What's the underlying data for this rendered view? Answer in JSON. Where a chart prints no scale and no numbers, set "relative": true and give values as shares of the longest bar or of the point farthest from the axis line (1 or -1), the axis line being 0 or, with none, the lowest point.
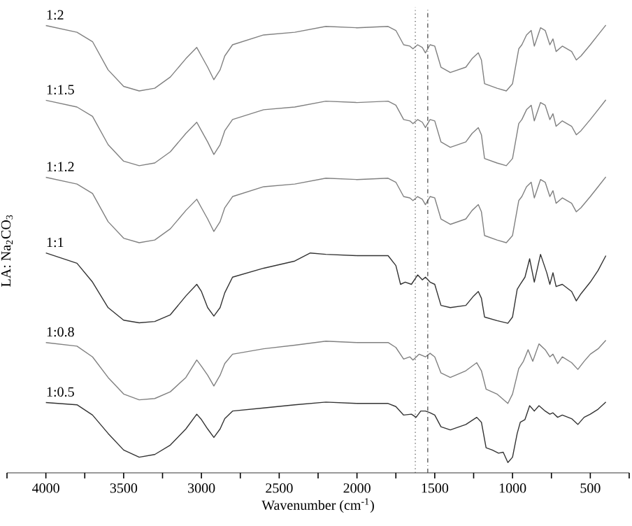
{
  "chart_data": {
    "type": "line",
    "relative": true,
    "xlabel": "Wavenumber (cm$^{-1}$)",
    "ylabel": "LA: Na$_{2}$CO$_{3}$",
    "xlim": [
      4250,
      250
    ],
    "xticks": [
      {
        "value": 4250,
        "label": null
      },
      4000,
      {
        "value": 3750,
        "label": null
      },
      3500,
      {
        "value": 3250,
        "label": null
      },
      3000,
      {
        "value": 2750,
        "label": null
      },
      2500,
      {
        "value": 2250,
        "label": null
      },
      2000,
      {
        "value": 1750,
        "label": null
      },
      1500,
      {
        "value": 1250,
        "label": null
      },
      1000,
      {
        "value": 750,
        "label": null
      },
      500,
      {
        "value": 250,
        "label": null
      }
    ],
    "legend": false,
    "grid": false,
    "marker": "none",
    "line_style": "solid",
    "tick_labels": "x",
    "ref_lines": [
      {
        "axis": "x",
        "value": 1625,
        "line_style": "dotted",
        "color": "#404040"
      },
      {
        "axis": "x",
        "value": 1545,
        "line_style": "dashed",
        "color": "#404040"
      }
    ],
    "series": [
      {
        "name": "1:2",
        "color": "#808080",
        "x": [
          4000,
          3800,
          3700,
          3600,
          3500,
          3400,
          3300,
          3200,
          3100,
          3030,
          3000,
          2960,
          2920,
          2880,
          2850,
          2800,
          2600,
          2400,
          2200,
          2000,
          1800,
          1750,
          1700,
          1660,
          1640,
          1610,
          1580,
          1560,
          1530,
          1500,
          1460,
          1400,
          1300,
          1260,
          1220,
          1200,
          1180,
          1100,
          1040,
          1000,
          960,
          940,
          910,
          880,
          860,
          820,
          790,
          760,
          740,
          720,
          680,
          620,
          590,
          560,
          500,
          450,
          400
        ],
        "values": [
          0.999,
          0.984,
          0.963,
          0.9,
          0.863,
          0.853,
          0.859,
          0.884,
          0.925,
          0.95,
          0.931,
          0.906,
          0.878,
          0.9,
          0.931,
          0.956,
          0.978,
          0.984,
          0.997,
          0.994,
          0.997,
          0.988,
          0.956,
          0.953,
          0.947,
          0.956,
          0.95,
          0.938,
          0.956,
          0.953,
          0.906,
          0.894,
          0.906,
          0.925,
          0.938,
          0.922,
          0.869,
          0.859,
          0.853,
          0.869,
          0.947,
          0.956,
          0.978,
          0.988,
          0.953,
          0.994,
          0.988,
          0.956,
          0.969,
          0.941,
          0.953,
          0.941,
          0.922,
          0.931,
          0.956,
          0.978,
          1
        ]
      },
      {
        "name": "1:1.5",
        "color": "#808080",
        "x": [
          4000,
          3800,
          3700,
          3600,
          3500,
          3400,
          3300,
          3200,
          3100,
          3030,
          3000,
          2960,
          2920,
          2880,
          2850,
          2800,
          2600,
          2400,
          2200,
          2000,
          1800,
          1750,
          1700,
          1660,
          1640,
          1610,
          1580,
          1560,
          1530,
          1500,
          1460,
          1400,
          1300,
          1260,
          1220,
          1200,
          1180,
          1100,
          1040,
          1000,
          960,
          940,
          910,
          880,
          860,
          820,
          790,
          760,
          740,
          720,
          680,
          620,
          590,
          560,
          500,
          450,
          400
        ],
        "values": [
          0.832,
          0.817,
          0.796,
          0.733,
          0.696,
          0.686,
          0.692,
          0.717,
          0.758,
          0.783,
          0.764,
          0.739,
          0.711,
          0.733,
          0.764,
          0.789,
          0.811,
          0.817,
          0.83,
          0.827,
          0.83,
          0.821,
          0.789,
          0.786,
          0.78,
          0.789,
          0.783,
          0.771,
          0.789,
          0.786,
          0.739,
          0.727,
          0.739,
          0.758,
          0.771,
          0.755,
          0.702,
          0.692,
          0.686,
          0.702,
          0.78,
          0.789,
          0.811,
          0.821,
          0.786,
          0.827,
          0.821,
          0.789,
          0.802,
          0.774,
          0.786,
          0.774,
          0.755,
          0.764,
          0.789,
          0.811,
          0.833
        ]
      },
      {
        "name": "1:1.2",
        "color": "#808080",
        "x": [
          4000,
          3800,
          3700,
          3600,
          3500,
          3400,
          3300,
          3200,
          3100,
          3030,
          3000,
          2960,
          2920,
          2880,
          2850,
          2800,
          2600,
          2400,
          2200,
          2000,
          1800,
          1750,
          1700,
          1660,
          1640,
          1610,
          1580,
          1560,
          1530,
          1500,
          1460,
          1400,
          1300,
          1260,
          1220,
          1200,
          1180,
          1100,
          1040,
          1000,
          960,
          940,
          910,
          880,
          860,
          820,
          790,
          760,
          740,
          720,
          680,
          620,
          590,
          560,
          500,
          450,
          400
        ],
        "values": [
          0.66,
          0.645,
          0.624,
          0.561,
          0.524,
          0.514,
          0.52,
          0.545,
          0.586,
          0.611,
          0.592,
          0.567,
          0.539,
          0.561,
          0.592,
          0.617,
          0.639,
          0.645,
          0.658,
          0.655,
          0.658,
          0.649,
          0.617,
          0.614,
          0.608,
          0.617,
          0.611,
          0.599,
          0.617,
          0.614,
          0.567,
          0.555,
          0.567,
          0.586,
          0.599,
          0.583,
          0.53,
          0.52,
          0.514,
          0.53,
          0.608,
          0.617,
          0.639,
          0.649,
          0.614,
          0.655,
          0.649,
          0.617,
          0.63,
          0.602,
          0.614,
          0.602,
          0.583,
          0.592,
          0.617,
          0.639,
          0.661
        ]
      },
      {
        "name": "1:1",
        "color": "#333333",
        "x": [
          4000,
          3800,
          3700,
          3600,
          3500,
          3400,
          3300,
          3200,
          3100,
          3030,
          3000,
          2960,
          2920,
          2880,
          2850,
          2800,
          2600,
          2400,
          2300,
          2200,
          2000,
          1800,
          1750,
          1720,
          1690,
          1650,
          1610,
          1580,
          1560,
          1530,
          1500,
          1460,
          1400,
          1300,
          1250,
          1220,
          1200,
          1180,
          1100,
          1030,
          1000,
          970,
          950,
          920,
          890,
          860,
          820,
          780,
          760,
          740,
          720,
          680,
          620,
          590,
          560,
          500,
          450,
          400
        ],
        "values": [
          0.491,
          0.468,
          0.426,
          0.369,
          0.341,
          0.335,
          0.338,
          0.353,
          0.395,
          0.421,
          0.405,
          0.369,
          0.35,
          0.369,
          0.402,
          0.437,
          0.457,
          0.473,
          0.491,
          0.488,
          0.485,
          0.485,
          0.463,
          0.421,
          0.426,
          0.421,
          0.442,
          0.431,
          0.437,
          0.426,
          0.421,
          0.374,
          0.369,
          0.374,
          0.395,
          0.405,
          0.39,
          0.348,
          0.34,
          0.334,
          0.348,
          0.41,
          0.421,
          0.437,
          0.478,
          0.426,
          0.488,
          0.447,
          0.421,
          0.447,
          0.416,
          0.421,
          0.405,
          0.384,
          0.4,
          0.426,
          0.452,
          0.485
        ]
      },
      {
        "name": "1:0.8",
        "color": "#808080",
        "x": [
          4000,
          3800,
          3700,
          3600,
          3500,
          3400,
          3300,
          3200,
          3100,
          3030,
          3000,
          2960,
          2920,
          2880,
          2850,
          2800,
          2600,
          2400,
          2200,
          2000,
          1800,
          1750,
          1700,
          1660,
          1640,
          1600,
          1560,
          1530,
          1500,
          1460,
          1400,
          1300,
          1230,
          1200,
          1170,
          1100,
          1030,
          1000,
          960,
          930,
          900,
          870,
          830,
          790,
          760,
          740,
          710,
          680,
          620,
          580,
          540,
          500,
          450,
          400
        ],
        "values": [
          0.291,
          0.283,
          0.259,
          0.213,
          0.176,
          0.163,
          0.166,
          0.181,
          0.213,
          0.252,
          0.238,
          0.218,
          0.194,
          0.218,
          0.244,
          0.265,
          0.277,
          0.285,
          0.294,
          0.291,
          0.291,
          0.28,
          0.254,
          0.259,
          0.252,
          0.265,
          0.259,
          0.267,
          0.259,
          0.223,
          0.213,
          0.228,
          0.246,
          0.228,
          0.187,
          0.176,
          0.155,
          0.176,
          0.233,
          0.249,
          0.275,
          0.249,
          0.288,
          0.275,
          0.259,
          0.265,
          0.244,
          0.259,
          0.246,
          0.231,
          0.249,
          0.265,
          0.277,
          0.296
        ]
      },
      {
        "name": "1:0.5",
        "color": "#333333",
        "x": [
          4000,
          3800,
          3700,
          3600,
          3500,
          3400,
          3300,
          3200,
          3100,
          3030,
          3000,
          2960,
          2920,
          2880,
          2850,
          2800,
          2600,
          2400,
          2200,
          2000,
          1800,
          1750,
          1700,
          1650,
          1620,
          1590,
          1560,
          1530,
          1500,
          1460,
          1400,
          1300,
          1230,
          1200,
          1170,
          1130,
          1090,
          1060,
          1030,
          1000,
          970,
          950,
          920,
          890,
          860,
          830,
          790,
          760,
          740,
          710,
          680,
          620,
          580,
          540,
          500,
          450,
          400
        ],
        "values": [
          0.157,
          0.152,
          0.129,
          0.088,
          0.051,
          0.035,
          0.041,
          0.062,
          0.098,
          0.131,
          0.119,
          0.098,
          0.079,
          0.098,
          0.121,
          0.138,
          0.145,
          0.152,
          0.158,
          0.155,
          0.155,
          0.148,
          0.129,
          0.131,
          0.124,
          0.138,
          0.138,
          0.134,
          0.129,
          0.103,
          0.096,
          0.108,
          0.124,
          0.113,
          0.056,
          0.051,
          0.044,
          0.046,
          0.023,
          0.035,
          0.088,
          0.113,
          0.119,
          0.15,
          0.138,
          0.15,
          0.138,
          0.131,
          0.134,
          0.124,
          0.129,
          0.121,
          0.108,
          0.124,
          0.131,
          0.142,
          0.158
        ]
      }
    ]
  }
}
